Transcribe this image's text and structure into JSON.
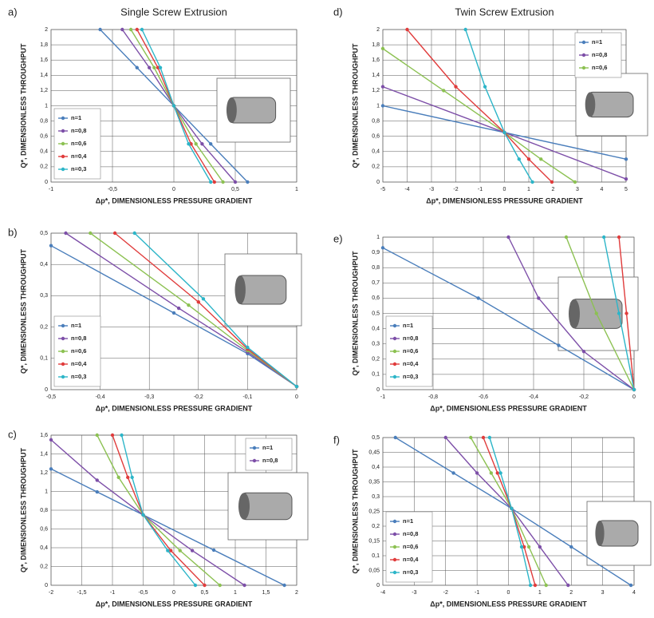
{
  "chart_data": [
    {
      "type": "line",
      "panel": "a)",
      "title": "Single Screw Extrusion",
      "x_label": "Δp*, DIMENSIONLESS  PRESSURE GRADIENT",
      "y_label": "Q*, DIMENSIONLESS THROUGHPUT",
      "grid": true,
      "legend": "lower left",
      "xlim": [
        -1,
        1
      ],
      "xticks": [
        -1,
        {
          "value": -0.5,
          "label": "-0,5"
        },
        0,
        {
          "value": 0.5,
          "label": "0,5"
        },
        1
      ],
      "ylim": [
        0,
        2
      ],
      "yticks": [
        0,
        {
          "value": 0.2,
          "label": "0,2"
        },
        {
          "value": 0.4,
          "label": "0,4"
        },
        {
          "value": 0.6,
          "label": "0,6"
        },
        {
          "value": 0.8,
          "label": "0,8"
        },
        1,
        {
          "value": 1.2,
          "label": "1,2"
        },
        {
          "value": 1.4,
          "label": "1,4"
        },
        {
          "value": 1.6,
          "label": "1,6"
        },
        {
          "value": 1.8,
          "label": "1,8"
        },
        2
      ],
      "series": [
        {
          "name": "n=1",
          "color": "#4a7ebb",
          "x": [
            -0.6,
            -0.3,
            0,
            0.3,
            0.6
          ],
          "values": [
            2,
            1.5,
            1,
            0.5,
            0
          ]
        },
        {
          "name": "n=0,8",
          "color": "#7d4fa8",
          "x": [
            -0.42,
            -0.2,
            0,
            0.23,
            0.5
          ],
          "values": [
            2,
            1.5,
            1,
            0.5,
            0
          ]
        },
        {
          "name": "n=0,6",
          "color": "#8cc152",
          "x": [
            -0.35,
            -0.16,
            0,
            0.18,
            0.4
          ],
          "values": [
            2,
            1.5,
            1,
            0.5,
            0
          ]
        },
        {
          "name": "n=0,4",
          "color": "#e03c3c",
          "x": [
            -0.3,
            -0.13,
            0,
            0.14,
            0.33
          ],
          "values": [
            2,
            1.5,
            1,
            0.5,
            0
          ]
        },
        {
          "name": "n=0,3",
          "color": "#2cb5c8",
          "x": [
            -0.26,
            -0.11,
            0,
            0.12,
            0.3
          ],
          "values": [
            2,
            1.5,
            1,
            0.5,
            0
          ]
        }
      ]
    },
    {
      "type": "line",
      "panel": "b)",
      "x_label": "Δp*, DIMENSIONLESS  PRESSURE GRADIENT",
      "y_label": "Q*, DIMENSIONLESS THROUGHPUT",
      "grid": true,
      "legend": "lower left",
      "xlim": [
        -0.5,
        0
      ],
      "xticks": [
        {
          "value": -0.5,
          "label": "-0,5"
        },
        {
          "value": -0.4,
          "label": "-0,4"
        },
        {
          "value": -0.3,
          "label": "-0,3"
        },
        {
          "value": -0.2,
          "label": "-0,2"
        },
        {
          "value": -0.1,
          "label": "-0,1"
        },
        0
      ],
      "ylim": [
        0,
        0.5
      ],
      "yticks": [
        0,
        {
          "value": 0.1,
          "label": "0,1"
        },
        {
          "value": 0.2,
          "label": "0,2"
        },
        {
          "value": 0.3,
          "label": "0,3"
        },
        {
          "value": 0.4,
          "label": "0,4"
        },
        {
          "value": 0.5,
          "label": "0,5"
        }
      ],
      "series": [
        {
          "name": "n=1",
          "color": "#4a7ebb",
          "x": [
            -0.5,
            -0.25,
            -0.1,
            0
          ],
          "values": [
            0.46,
            0.245,
            0.115,
            0.01
          ]
        },
        {
          "name": "n=0,8",
          "color": "#7d4fa8",
          "x": [
            -0.47,
            -0.24,
            -0.1,
            0
          ],
          "values": [
            0.5,
            0.26,
            0.12,
            0.01
          ]
        },
        {
          "name": "n=0,6",
          "color": "#8cc152",
          "x": [
            -0.42,
            -0.22,
            -0.1,
            0
          ],
          "values": [
            0.5,
            0.27,
            0.125,
            0.01
          ]
        },
        {
          "name": "n=0,4",
          "color": "#e03c3c",
          "x": [
            -0.37,
            -0.2,
            -0.1,
            0
          ],
          "values": [
            0.5,
            0.28,
            0.13,
            0.01
          ]
        },
        {
          "name": "n=0,3",
          "color": "#2cb5c8",
          "x": [
            -0.33,
            -0.19,
            -0.1,
            0
          ],
          "values": [
            0.5,
            0.29,
            0.135,
            0.01
          ]
        }
      ]
    },
    {
      "type": "line",
      "panel": "c)",
      "x_label": "Δp*, DIMENSIONLESS  PRESSURE GRADIENT",
      "y_label": "Q*, DIMENSIONLESS THROUGHPUT",
      "grid": true,
      "legend": "upper right",
      "xlim": [
        -2,
        2
      ],
      "xticks": [
        -2,
        {
          "value": -1.5,
          "label": "-1,5"
        },
        -1,
        {
          "value": -0.5,
          "label": "-0,5"
        },
        0,
        {
          "value": 0.5,
          "label": "0,5"
        },
        1,
        {
          "value": 1.5,
          "label": "1,5"
        },
        2
      ],
      "ylim": [
        0,
        1.6
      ],
      "yticks": [
        0,
        {
          "value": 0.2,
          "label": "0,2"
        },
        {
          "value": 0.4,
          "label": "0,4"
        },
        {
          "value": 0.6,
          "label": "0,6"
        },
        {
          "value": 0.8,
          "label": "0,8"
        },
        1,
        {
          "value": 1.2,
          "label": "1,2"
        },
        {
          "value": 1.4,
          "label": "1,4"
        },
        {
          "value": 1.6,
          "label": "1,6"
        }
      ],
      "series": [
        {
          "name": "n=1",
          "color": "#4a7ebb",
          "x": [
            -2,
            -1.25,
            -0.5,
            0.65,
            1.8
          ],
          "values": [
            1.24,
            0.995,
            0.75,
            0.375,
            0
          ]
        },
        {
          "name": "n=0,8",
          "color": "#7d4fa8",
          "x": [
            -2,
            -1.25,
            -0.5,
            0.3,
            1.15
          ],
          "values": [
            1.55,
            1.12,
            0.75,
            0.37,
            0
          ]
        },
        {
          "color": "#8cc152",
          "x": [
            -1.25,
            -0.9,
            -0.5,
            0.1,
            0.75
          ],
          "values": [
            1.6,
            1.15,
            0.75,
            0.37,
            0
          ]
        },
        {
          "color": "#e03c3c",
          "x": [
            -1,
            -0.75,
            -0.5,
            -0.05,
            0.5
          ],
          "values": [
            1.6,
            1.15,
            0.75,
            0.37,
            0
          ]
        },
        {
          "color": "#2cb5c8",
          "x": [
            -0.85,
            -0.68,
            -0.5,
            -0.1,
            0.35
          ],
          "values": [
            1.6,
            1.15,
            0.75,
            0.37,
            0
          ]
        }
      ]
    },
    {
      "type": "line",
      "panel": "d)",
      "title": "Twin Screw Extrusion",
      "x_label": "Δp*, DIMENSIONLESS  PRESSURE GRADIENT",
      "y_label": "Q*, DIMENSIONLESS THROUGHPUT",
      "grid": true,
      "legend": "upper right",
      "xlim": [
        -5,
        5
      ],
      "xticks": [
        -5,
        -4,
        -3,
        -2,
        -1,
        0,
        1,
        2,
        3,
        4,
        5
      ],
      "ylim": [
        0,
        2
      ],
      "yticks": [
        0,
        {
          "value": 0.2,
          "label": "0,2"
        },
        {
          "value": 0.4,
          "label": "0,4"
        },
        {
          "value": 0.6,
          "label": "0,6"
        },
        {
          "value": 0.8,
          "label": "0,8"
        },
        1,
        {
          "value": 1.2,
          "label": "1,2"
        },
        {
          "value": 1.4,
          "label": "1,4"
        },
        {
          "value": 1.6,
          "label": "1,6"
        },
        {
          "value": 1.8,
          "label": "1,8"
        },
        2
      ],
      "series": [
        {
          "name": "n=1",
          "color": "#4a7ebb",
          "x": [
            -5,
            0,
            5
          ],
          "values": [
            1,
            0.65,
            0.3
          ]
        },
        {
          "name": "n=0,8",
          "color": "#7d4fa8",
          "x": [
            -5,
            0,
            5
          ],
          "values": [
            1.25,
            0.65,
            0.04
          ]
        },
        {
          "name": "n=0,6",
          "color": "#8cc152",
          "x": [
            -5,
            -2.5,
            0,
            1.5,
            2.9
          ],
          "values": [
            1.75,
            1.2,
            0.65,
            0.3,
            0
          ]
        },
        {
          "color": "#e03c3c",
          "x": [
            -4,
            -2,
            0,
            1,
            1.95
          ],
          "values": [
            2,
            1.25,
            0.65,
            0.3,
            0
          ]
        },
        {
          "color": "#2cb5c8",
          "x": [
            -1.6,
            -0.8,
            0,
            0.6,
            1.15
          ],
          "values": [
            2,
            1.25,
            0.65,
            0.3,
            0
          ]
        }
      ]
    },
    {
      "type": "line",
      "panel": "e)",
      "x_label": "Δp*, DIMENSIONLESS  PRESSURE GRADIENT",
      "y_label": "Q*, DIMENSIONLESS THROUGHPUT",
      "grid": true,
      "legend": "lower left",
      "xlim": [
        -1,
        0
      ],
      "xticks": [
        -1,
        {
          "value": -0.8,
          "label": "-0,8"
        },
        {
          "value": -0.6,
          "label": "-0,6"
        },
        {
          "value": -0.4,
          "label": "-0,4"
        },
        {
          "value": -0.2,
          "label": "-0,2"
        },
        0
      ],
      "ylim": [
        0,
        1
      ],
      "yticks": [
        0,
        {
          "value": 0.1,
          "label": "0,1"
        },
        {
          "value": 0.2,
          "label": "0,2"
        },
        {
          "value": 0.3,
          "label": "0,3"
        },
        {
          "value": 0.4,
          "label": "0,4"
        },
        {
          "value": 0.5,
          "label": "0,5"
        },
        {
          "value": 0.6,
          "label": "0,6"
        },
        {
          "value": 0.7,
          "label": "0,7"
        },
        {
          "value": 0.8,
          "label": "0,8"
        },
        {
          "value": 0.9,
          "label": "0,9"
        },
        1
      ],
      "series": [
        {
          "name": "n=1",
          "color": "#4a7ebb",
          "x": [
            -1,
            -0.62,
            -0.3,
            0
          ],
          "values": [
            0.93,
            0.6,
            0.29,
            0
          ]
        },
        {
          "name": "n=0,8",
          "color": "#7d4fa8",
          "x": [
            -0.5,
            -0.38,
            -0.2,
            0
          ],
          "values": [
            1,
            0.6,
            0.25,
            0
          ]
        },
        {
          "name": "n=0,6",
          "color": "#8cc152",
          "x": [
            -0.27,
            -0.15,
            0
          ],
          "values": [
            1,
            0.5,
            0
          ]
        },
        {
          "name": "n=0,4",
          "color": "#e03c3c",
          "x": [
            -0.06,
            -0.03,
            0
          ],
          "values": [
            1,
            0.5,
            0
          ]
        },
        {
          "name": "n=0,3",
          "color": "#2cb5c8",
          "x": [
            -0.12,
            -0.06,
            0
          ],
          "values": [
            1,
            0.5,
            0
          ]
        }
      ]
    },
    {
      "type": "line",
      "panel": "f)",
      "x_label": "Δp*, DIMENSIONLESS  PRESSURE GRADIENT",
      "y_label": "Q*, DIMENSIONLESS THROUGHPUT",
      "grid": true,
      "legend": "lower left",
      "xlim": [
        -4,
        4
      ],
      "xticks": [
        -4,
        -3,
        -2,
        -1,
        0,
        1,
        2,
        3,
        4
      ],
      "ylim": [
        0,
        0.5
      ],
      "yticks": [
        0,
        {
          "value": 0.05,
          "label": "0,05"
        },
        {
          "value": 0.1,
          "label": "0,1"
        },
        {
          "value": 0.15,
          "label": "0,15"
        },
        {
          "value": 0.2,
          "label": "0,2"
        },
        {
          "value": 0.25,
          "label": "0,25"
        },
        {
          "value": 0.3,
          "label": "0,3"
        },
        {
          "value": 0.35,
          "label": "0,35"
        },
        {
          "value": 0.4,
          "label": "0,4"
        },
        {
          "value": 0.45,
          "label": "0,45"
        },
        {
          "value": 0.5,
          "label": "0,5"
        }
      ],
      "series": [
        {
          "name": "n=1",
          "color": "#4a7ebb",
          "x": [
            -3.6,
            -1.75,
            0.1,
            2,
            3.9
          ],
          "values": [
            0.5,
            0.38,
            0.26,
            0.13,
            0
          ]
        },
        {
          "name": "n=0,8",
          "color": "#7d4fa8",
          "x": [
            -2,
            -1,
            0.1,
            1,
            1.9
          ],
          "values": [
            0.5,
            0.38,
            0.26,
            0.13,
            0
          ]
        },
        {
          "name": "n=0,6",
          "color": "#8cc152",
          "x": [
            -1.2,
            -0.55,
            0.1,
            0.65,
            1.2
          ],
          "values": [
            0.5,
            0.38,
            0.26,
            0.13,
            0
          ]
        },
        {
          "name": "n=0,4",
          "color": "#e03c3c",
          "x": [
            -0.8,
            -0.35,
            0.1,
            0.5,
            0.85
          ],
          "values": [
            0.5,
            0.38,
            0.26,
            0.13,
            0
          ]
        },
        {
          "name": "n=0,3",
          "color": "#2cb5c8",
          "x": [
            -0.6,
            -0.25,
            0.1,
            0.42,
            0.7
          ],
          "values": [
            0.5,
            0.38,
            0.26,
            0.13,
            0
          ]
        }
      ]
    }
  ]
}
